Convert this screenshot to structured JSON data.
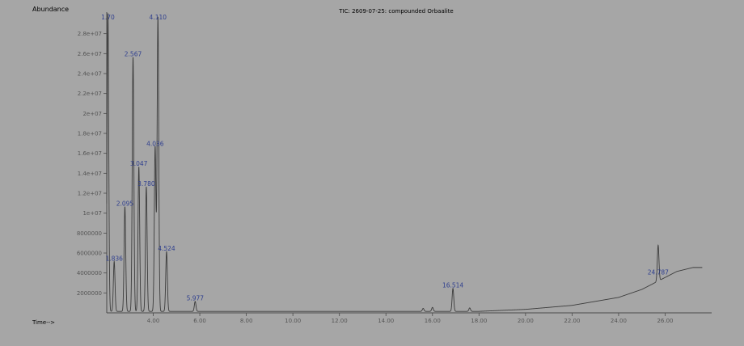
{
  "header": {
    "abundance_label": "Abundance",
    "title": "TIC: 2609-07-25: compounded Orbaalite"
  },
  "footer": {
    "time_label": "Time-->"
  },
  "colors": {
    "background": "#a6a6a6",
    "trace": "#3c3c3c",
    "axis": "#4a4a4a",
    "peak_label": "#2f3f8f",
    "text": "#555555"
  },
  "chart_data": {
    "type": "line",
    "title": "TIC: 2609-07-25: compounded Orbaalite",
    "ylabel": "Abundance",
    "xlabel": "Time-->",
    "xlim": [
      2.0,
      28.0
    ],
    "ylim": [
      0,
      30000000.0
    ],
    "grid": false,
    "y_ticks": [
      {
        "value": 2000000,
        "label": "2000000"
      },
      {
        "value": 4000000,
        "label": "4000000"
      },
      {
        "value": 6000000,
        "label": "6000000"
      },
      {
        "value": 8000000,
        "label": "8000000"
      },
      {
        "value": 10000000,
        "label": "1e+07"
      },
      {
        "value": 12000000,
        "label": "1.2e+07"
      },
      {
        "value": 14000000,
        "label": "1.4e+07"
      },
      {
        "value": 16000000,
        "label": "1.6e+07"
      },
      {
        "value": 18000000,
        "label": "1.8e+07"
      },
      {
        "value": 20000000,
        "label": "2e+07"
      },
      {
        "value": 22000000,
        "label": "2.2e+07"
      },
      {
        "value": 24000000,
        "label": "2.4e+07"
      },
      {
        "value": 26000000,
        "label": "2.6e+07"
      },
      {
        "value": 28000000,
        "label": "2.8e+07"
      }
    ],
    "x_ticks": [
      {
        "value": 4.0,
        "label": "4.00"
      },
      {
        "value": 6.0,
        "label": "6.00"
      },
      {
        "value": 8.0,
        "label": "8.00"
      },
      {
        "value": 10.0,
        "label": "10.00"
      },
      {
        "value": 12.0,
        "label": "12.00"
      },
      {
        "value": 14.0,
        "label": "14.00"
      },
      {
        "value": 16.0,
        "label": "16.00"
      },
      {
        "value": 18.0,
        "label": "18.00"
      },
      {
        "value": 20.0,
        "label": "20.00"
      },
      {
        "value": 22.0,
        "label": "22.00"
      },
      {
        "value": 24.0,
        "label": "24.00"
      },
      {
        "value": 26.0,
        "label": "26.00"
      }
    ],
    "peaks": [
      {
        "rt": 2.05,
        "height": 30000000,
        "label": "1.70"
      },
      {
        "rt": 2.32,
        "height": 5000000,
        "label": "1.836"
      },
      {
        "rt": 2.78,
        "height": 10500000,
        "label": "2.095"
      },
      {
        "rt": 3.13,
        "height": 25500000,
        "label": "2.567"
      },
      {
        "rt": 3.38,
        "height": 14500000,
        "label": "3.047"
      },
      {
        "rt": 3.7,
        "height": 12500000,
        "label": "3.780"
      },
      {
        "rt": 4.08,
        "height": 16500000,
        "label": "4.036"
      },
      {
        "rt": 4.2,
        "height": 29500000,
        "label": "4.110"
      },
      {
        "rt": 4.57,
        "height": 6000000,
        "label": "4.524"
      },
      {
        "rt": 5.8,
        "height": 1000000,
        "label": "5.977"
      },
      {
        "rt": 16.88,
        "height": 2300000,
        "label": "16.514"
      },
      {
        "rt": 25.7,
        "height": 3600000,
        "label": "24.787"
      }
    ],
    "minor_peaks": [
      {
        "rt": 15.6,
        "height": 300000
      },
      {
        "rt": 16.0,
        "height": 400000
      },
      {
        "rt": 17.6,
        "height": 350000
      }
    ],
    "baseline": {
      "rt": [
        6.5,
        16.0,
        18.0,
        20.0,
        22.0,
        24.0,
        25.0,
        25.5,
        26.5,
        27.2,
        27.6
      ],
      "height": [
        0,
        0,
        0,
        200000,
        600000,
        1400000,
        2200000,
        2800000,
        4000000,
        4400000,
        4400000
      ]
    }
  }
}
